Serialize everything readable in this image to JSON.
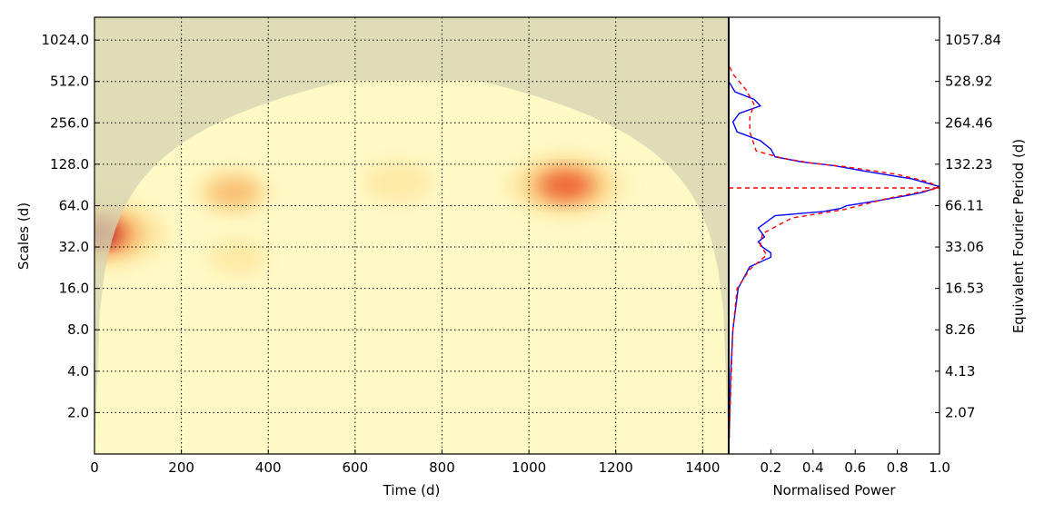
{
  "chart_data": [
    {
      "type": "heatmap",
      "title": "",
      "xlabel": "Time (d)",
      "ylabel": "Scales (d)",
      "xlim": [
        0,
        1460
      ],
      "x_ticks": [
        0,
        200,
        400,
        600,
        800,
        1000,
        1200,
        1400
      ],
      "y_scale": "log2",
      "ylim": [
        1,
        1500
      ],
      "y_ticks": [
        2.0,
        4.0,
        8.0,
        16.0,
        32.0,
        64.0,
        128.0,
        256.0,
        512.0,
        1024.0
      ],
      "y_tick_labels": [
        "2.0",
        "4.0",
        "8.0",
        "16.0",
        "32.0",
        "64.0",
        "128.0",
        "256.0",
        "512.0",
        "1024.0"
      ],
      "grid": true,
      "colormap": [
        "#fff9c6",
        "#fde7a0",
        "#f7b86c",
        "#ee5a32",
        "#c41e3a",
        "#8b0a32"
      ],
      "cone_of_influence_color": "#d5d5b2",
      "hotspots": [
        {
          "time": 10,
          "scale": 40,
          "strength": 1.0
        },
        {
          "time": 1085,
          "scale": 90,
          "strength": 0.8
        },
        {
          "time": 320,
          "scale": 80,
          "strength": 0.35
        },
        {
          "time": 700,
          "scale": 95,
          "strength": 0.3
        },
        {
          "time": 330,
          "scale": 27,
          "strength": 0.2
        }
      ]
    },
    {
      "type": "line",
      "title": "",
      "xlabel": "Normalised Power",
      "ylabel_right": "Equivalent Fourier Period (d)",
      "xlim": [
        0,
        1.0
      ],
      "x_ticks": [
        0.2,
        0.4,
        0.6,
        0.8,
        1.0
      ],
      "x_tick_labels": [
        "0.2",
        "0.4",
        "0.6",
        "0.8",
        "1.0"
      ],
      "right_tick_labels": [
        "2.07",
        "4.13",
        "8.26",
        "16.53",
        "33.06",
        "66.11",
        "132.23",
        "264.46",
        "528.92",
        "1057.84"
      ],
      "y_scale": "log2",
      "ylim": [
        1,
        1500
      ],
      "series": [
        {
          "style": "solid",
          "color": "#0000ff",
          "points": [
            [
              0.0,
              1.0
            ],
            [
              0.005,
              2.0
            ],
            [
              0.01,
              4.0
            ],
            [
              0.02,
              8.0
            ],
            [
              0.045,
              16.0
            ],
            [
              0.1,
              23.0
            ],
            [
              0.2,
              27.0
            ],
            [
              0.2,
              29.0
            ],
            [
              0.16,
              32.0
            ],
            [
              0.14,
              35.0
            ],
            [
              0.17,
              38.0
            ],
            [
              0.14,
              44.0
            ],
            [
              0.22,
              54.0
            ],
            [
              0.45,
              58.0
            ],
            [
              0.53,
              61.0
            ],
            [
              0.56,
              64.0
            ],
            [
              0.72,
              70.0
            ],
            [
              0.85,
              76.0
            ],
            [
              0.92,
              80.0
            ],
            [
              1.0,
              88.0
            ],
            [
              0.87,
              100.0
            ],
            [
              0.66,
              113.0
            ],
            [
              0.5,
              125.0
            ],
            [
              0.35,
              133.0
            ],
            [
              0.22,
              145.0
            ],
            [
              0.2,
              165.0
            ],
            [
              0.15,
              190.0
            ],
            [
              0.04,
              220.0
            ],
            [
              0.02,
              260.0
            ],
            [
              0.05,
              300.0
            ],
            [
              0.15,
              340.0
            ],
            [
              0.12,
              380.0
            ],
            [
              0.03,
              430.0
            ],
            [
              0.0,
              512.0
            ]
          ]
        },
        {
          "style": "dashed",
          "color": "#ff0000",
          "points": [
            [
              0.0,
              1.0
            ],
            [
              0.01,
              3.0
            ],
            [
              0.02,
              8.0
            ],
            [
              0.04,
              16.0
            ],
            [
              0.1,
              22.0
            ],
            [
              0.18,
              28.0
            ],
            [
              0.15,
              33.0
            ],
            [
              0.16,
              40.0
            ],
            [
              0.3,
              52.0
            ],
            [
              0.55,
              60.0
            ],
            [
              0.75,
              72.0
            ],
            [
              0.9,
              80.0
            ],
            [
              1.0,
              86.0
            ],
            [
              0.95,
              95.0
            ],
            [
              0.8,
              108.0
            ],
            [
              0.55,
              123.0
            ],
            [
              0.4,
              130.0
            ],
            [
              0.25,
              142.0
            ],
            [
              0.13,
              160.0
            ],
            [
              0.1,
              220.0
            ],
            [
              0.1,
              280.0
            ],
            [
              0.12,
              350.0
            ],
            [
              0.08,
              450.0
            ],
            [
              0.02,
              580.0
            ],
            [
              0.0,
              680.0
            ]
          ]
        },
        {
          "style": "dashed",
          "color": "#ff0000",
          "points": [
            [
              0.0,
              86.0
            ],
            [
              1.0,
              86.0
            ]
          ]
        }
      ]
    }
  ]
}
